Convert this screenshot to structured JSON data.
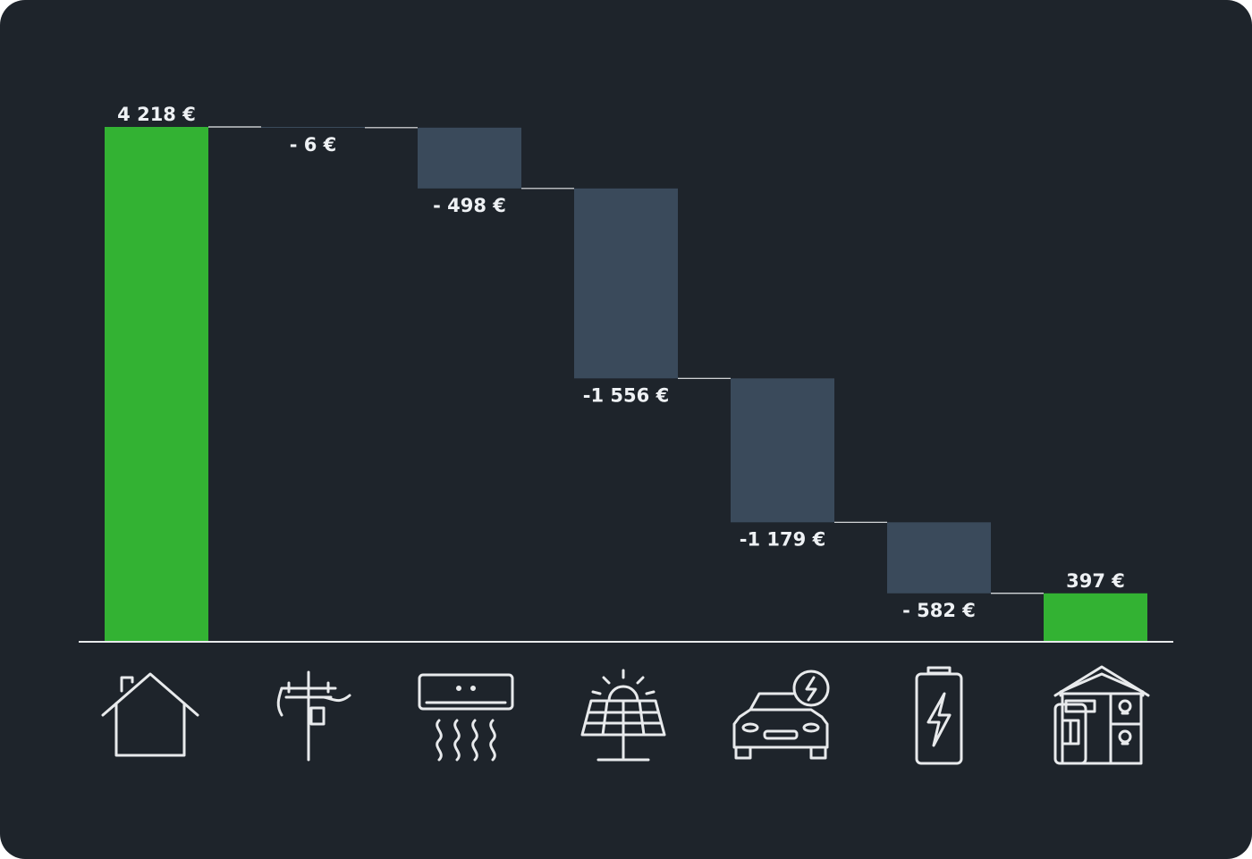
{
  "chart_data": {
    "type": "waterfall",
    "categories": [
      "house",
      "grid",
      "air-conditioner",
      "solar-panel",
      "electric-car",
      "battery",
      "smart-home"
    ],
    "steps": [
      {
        "kind": "total",
        "value": 4218,
        "label": "4 218 €"
      },
      {
        "kind": "delta",
        "value": -6,
        "label": "- 6 €"
      },
      {
        "kind": "delta",
        "value": -498,
        "label": "- 498 €"
      },
      {
        "kind": "delta",
        "value": -1556,
        "label": "-1 556 €"
      },
      {
        "kind": "delta",
        "value": -1179,
        "label": "-1 179 €"
      },
      {
        "kind": "delta",
        "value": -582,
        "label": "- 582 €"
      },
      {
        "kind": "total",
        "value": 397,
        "label": "397 €"
      }
    ],
    "ylim": [
      0,
      4218
    ],
    "grid": false,
    "legend": "none"
  },
  "icons": [
    "house-icon",
    "power-pole-icon",
    "air-conditioner-icon",
    "solar-panel-icon",
    "electric-car-icon",
    "battery-icon",
    "smart-home-icon"
  ],
  "colors": {
    "background": "#1e242b",
    "total_bar": "#33b233",
    "delta_bar": "#3a4a5b",
    "connector": "#e8eaec",
    "label": "#eef1f4"
  }
}
